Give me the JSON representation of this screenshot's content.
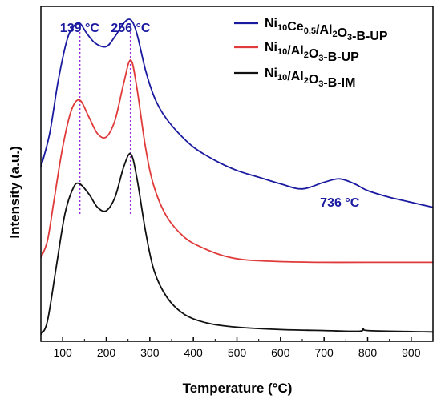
{
  "chart_data": {
    "type": "line",
    "xlabel": "Temperature (°C)",
    "ylabel": "Intensity (a.u.)",
    "xlim": [
      50,
      950
    ],
    "x_ticks": [
      100,
      200,
      300,
      400,
      500,
      600,
      700,
      800,
      900
    ],
    "y_ticks_shown": false,
    "ylim": [
      0,
      100
    ],
    "series": [
      {
        "name_parts": [
          [
            "Ni",
            ""
          ],
          [
            "10",
            "sub"
          ],
          [
            "Ce",
            ""
          ],
          [
            "0.5",
            "sub"
          ],
          [
            "/Al",
            ""
          ],
          [
            "2",
            "sub"
          ],
          [
            "O",
            ""
          ],
          [
            "3",
            "sub"
          ],
          [
            "-B-UP",
            ""
          ]
        ],
        "color": "#1a1aa0",
        "x": [
          50,
          70,
          90,
          110,
          125,
          139,
          155,
          175,
          200,
          220,
          240,
          256,
          270,
          290,
          310,
          330,
          360,
          400,
          450,
          500,
          550,
          600,
          650,
          700,
          736,
          770,
          800,
          850,
          900,
          950
        ],
        "y": [
          52,
          62,
          78,
          90,
          94,
          95,
          92,
          89,
          88,
          91,
          95,
          96,
          92,
          81,
          73,
          68,
          63,
          58,
          54,
          51,
          49,
          47,
          45.5,
          47.5,
          48.5,
          47,
          45,
          43,
          41.5,
          40
        ]
      },
      {
        "name_parts": [
          [
            "Ni",
            ""
          ],
          [
            "10",
            "sub"
          ],
          [
            "/Al",
            ""
          ],
          [
            "2",
            "sub"
          ],
          [
            "O",
            ""
          ],
          [
            "3",
            "sub"
          ],
          [
            "-B-UP",
            ""
          ]
        ],
        "color": "#e03a3a",
        "x": [
          50,
          65,
          80,
          100,
          120,
          139,
          160,
          180,
          200,
          220,
          240,
          256,
          270,
          290,
          310,
          340,
          380,
          420,
          470,
          520,
          600,
          700,
          800,
          950
        ],
        "y": [
          25,
          30,
          42,
          58,
          69,
          72,
          67,
          62,
          61,
          66,
          77,
          84,
          76,
          58,
          46,
          37,
          31,
          28,
          25.5,
          24.3,
          23.8,
          23.6,
          23.6,
          23.6
        ]
      },
      {
        "name_parts": [
          [
            "Ni",
            ""
          ],
          [
            "10",
            "sub"
          ],
          [
            "/Al",
            ""
          ],
          [
            "2",
            "sub"
          ],
          [
            "O",
            ""
          ],
          [
            "3",
            "sub"
          ],
          [
            "-B-IM",
            ""
          ]
        ],
        "color": "#111111",
        "x": [
          50,
          65,
          85,
          105,
          125,
          139,
          160,
          180,
          200,
          220,
          240,
          256,
          270,
          290,
          310,
          340,
          380,
          430,
          500,
          600,
          700,
          780,
          790,
          800,
          900,
          950
        ],
        "y": [
          2,
          6,
          22,
          38,
          46,
          47,
          44,
          40,
          39,
          43,
          52,
          56,
          49,
          33,
          21,
          13,
          8,
          5.5,
          4.2,
          3.5,
          3.2,
          3.0,
          3.8,
          3.2,
          2.9,
          2.8
        ]
      }
    ],
    "annotations": [
      {
        "text": "139 °C",
        "x": 139,
        "color": "#1a1aa0"
      },
      {
        "text": "256 °C",
        "x": 256,
        "color": "#1a1aa0"
      },
      {
        "text": "736 °C",
        "x": 736,
        "color": "#1a1aa0"
      }
    ],
    "reference_lines": [
      {
        "x": 139,
        "color": "#9a2de0",
        "style": "dotted"
      },
      {
        "x": 256,
        "color": "#9a2de0",
        "style": "dotted"
      }
    ],
    "legend_position": "top-right",
    "grid": false
  }
}
